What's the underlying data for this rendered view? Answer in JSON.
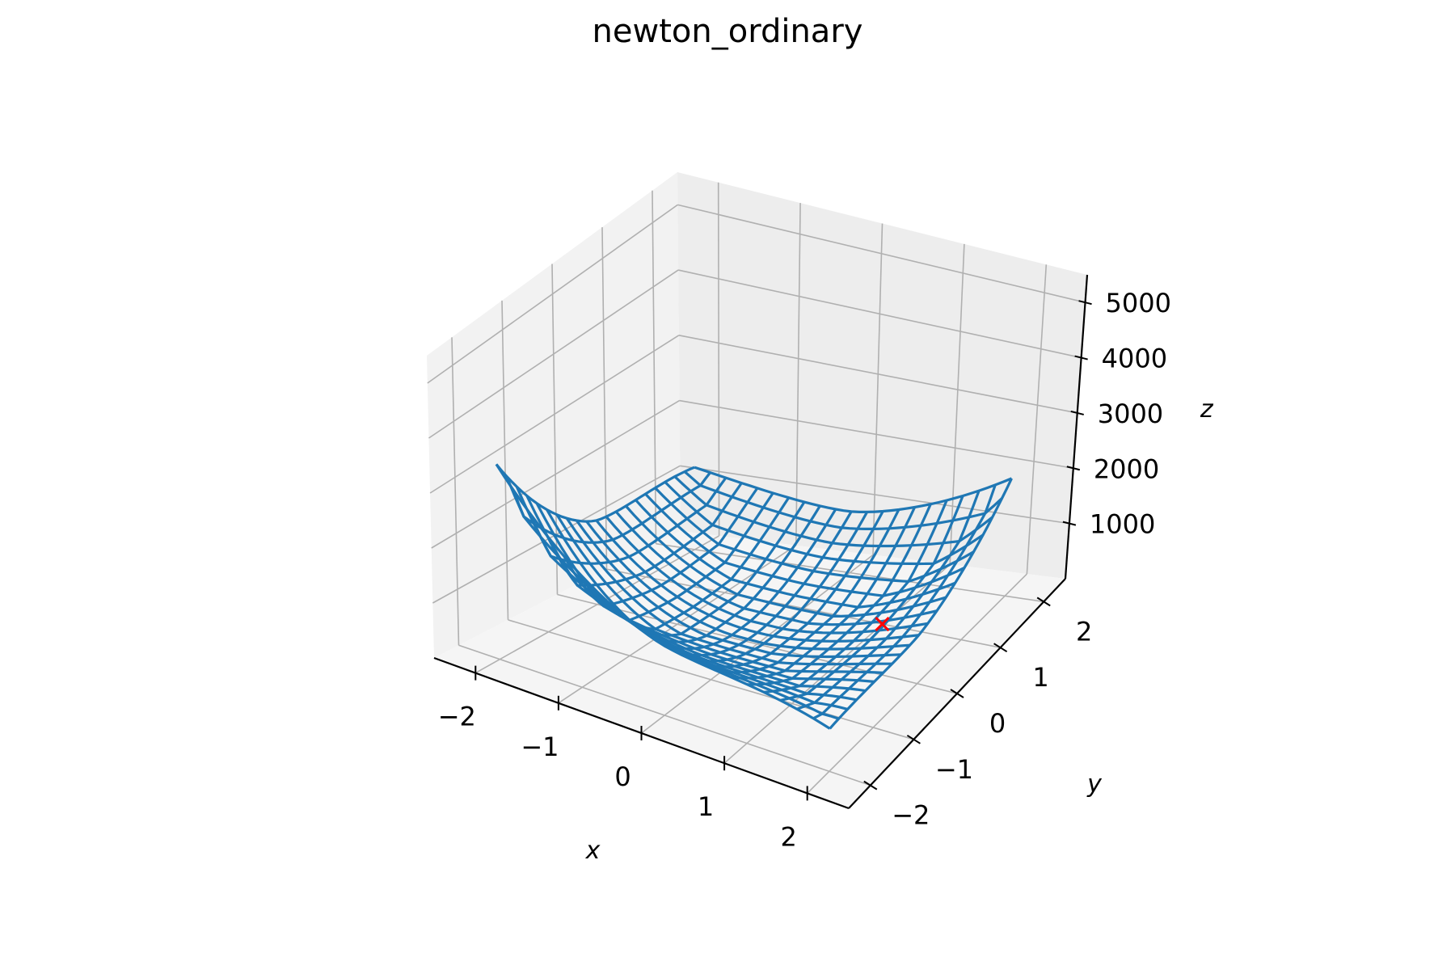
{
  "chart_data": {
    "type": "surface-wireframe-3d",
    "title": "newton_ordinary",
    "xlabel": "x",
    "ylabel": "y",
    "zlabel": "z",
    "x_ticks": [
      "−2",
      "−1",
      "0",
      "1",
      "2"
    ],
    "y_ticks": [
      "−2",
      "−1",
      "0",
      "1",
      "2"
    ],
    "z_ticks": [
      "1000",
      "2000",
      "3000",
      "4000",
      "5000"
    ],
    "x_range": [
      -2.5,
      2.5
    ],
    "y_range": [
      -2.5,
      2.5
    ],
    "z_range": [
      0,
      5500
    ],
    "grid": true,
    "surface": {
      "name": "",
      "color": "#1f77b4",
      "x_min": -2,
      "x_max": 2,
      "y_min": -2,
      "y_max": 2,
      "corner_values": {
        "x-2_y-2": 3500,
        "x-2_y2": 1300,
        "x2_y2": 2100,
        "x2_y-2": 800
      },
      "min_value": 200
    },
    "marker": {
      "x": 1,
      "y": 1,
      "z": 0,
      "color": "#ff0000",
      "symbol": "x"
    }
  }
}
